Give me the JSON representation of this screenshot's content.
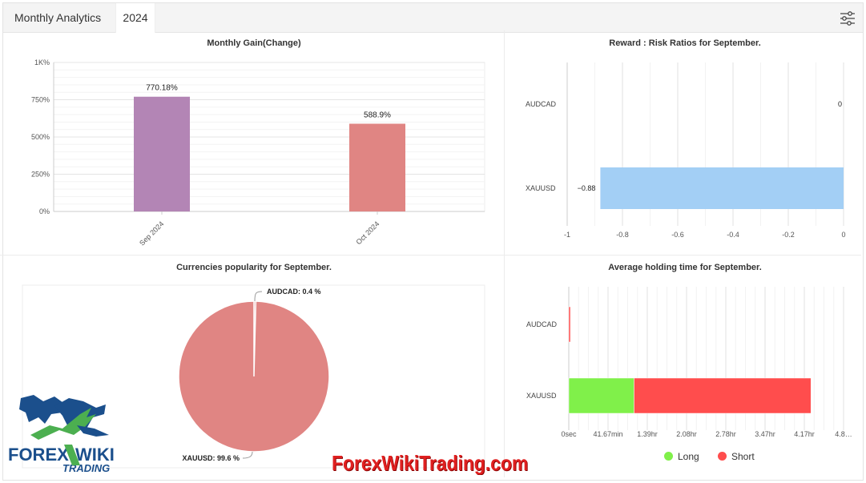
{
  "header": {
    "title": "Monthly Analytics",
    "year_tab": "2024",
    "settings_icon": "sliders-icon"
  },
  "charts": {
    "monthly_gain": {
      "title": "Monthly Gain(Change)"
    },
    "reward_risk": {
      "title": "Reward : Risk Ratios for September."
    },
    "popularity": {
      "title": "Currencies popularity for September."
    },
    "holding": {
      "title": "Average holding time for September."
    }
  },
  "chart_data": [
    {
      "id": "monthly_gain",
      "type": "bar",
      "title": "Monthly Gain(Change)",
      "categories": [
        "Sep 2024",
        "Oct 2024"
      ],
      "values": [
        770.18,
        588.9
      ],
      "data_labels": [
        "770.18%",
        "588.9%"
      ],
      "colors": [
        "#b385b5",
        "#e08583"
      ],
      "y_ticks": [
        "0%",
        "250%",
        "500%",
        "750%",
        "1K%"
      ],
      "ylim": [
        0,
        1000
      ],
      "grid": true
    },
    {
      "id": "reward_risk",
      "type": "bar",
      "orientation": "horizontal",
      "title": "Reward : Risk Ratios for September.",
      "categories": [
        "AUDCAD",
        "XAUUSD"
      ],
      "values": [
        0,
        -0.88
      ],
      "data_labels": [
        "0",
        "−0.88"
      ],
      "color": "#a3cff5",
      "x_ticks": [
        "-1",
        "-0.8",
        "-0.6",
        "-0.4",
        "-0.2",
        "0"
      ],
      "xlim": [
        -1,
        0
      ],
      "grid": true
    },
    {
      "id": "popularity",
      "type": "pie",
      "title": "Currencies popularity for September.",
      "slices": [
        {
          "label": "AUDCAD",
          "value": 0.4,
          "text": "AUDCAD: 0.4 %",
          "color": "#e08583"
        },
        {
          "label": "XAUUSD",
          "value": 99.6,
          "text": "XAUUSD: 99.6 %",
          "color": "#e08583"
        }
      ]
    },
    {
      "id": "holding",
      "type": "bar",
      "orientation": "horizontal",
      "stacked": true,
      "title": "Average holding time for September.",
      "categories": [
        "AUDCAD",
        "XAUUSD"
      ],
      "x_ticks": [
        "0sec",
        "41.67min",
        "1.39hr",
        "2.08hr",
        "2.78hr",
        "3.47hr",
        "4.17hr",
        "4.8…"
      ],
      "xlim_hours": [
        0,
        4.8
      ],
      "series": [
        {
          "name": "Long",
          "values": [
            0,
            1.14
          ],
          "color": "#80f04a"
        },
        {
          "name": "Short",
          "values": [
            0.02,
            3.09
          ],
          "color": "#ff4d4d"
        }
      ],
      "legend_position": "bottom",
      "grid": true
    }
  ],
  "branding": {
    "logo_text_top": "FOREX",
    "logo_text_wiki": "WIKI",
    "logo_text_bottom": "TRADING",
    "watermark": "ForexWikiTrading.com"
  }
}
